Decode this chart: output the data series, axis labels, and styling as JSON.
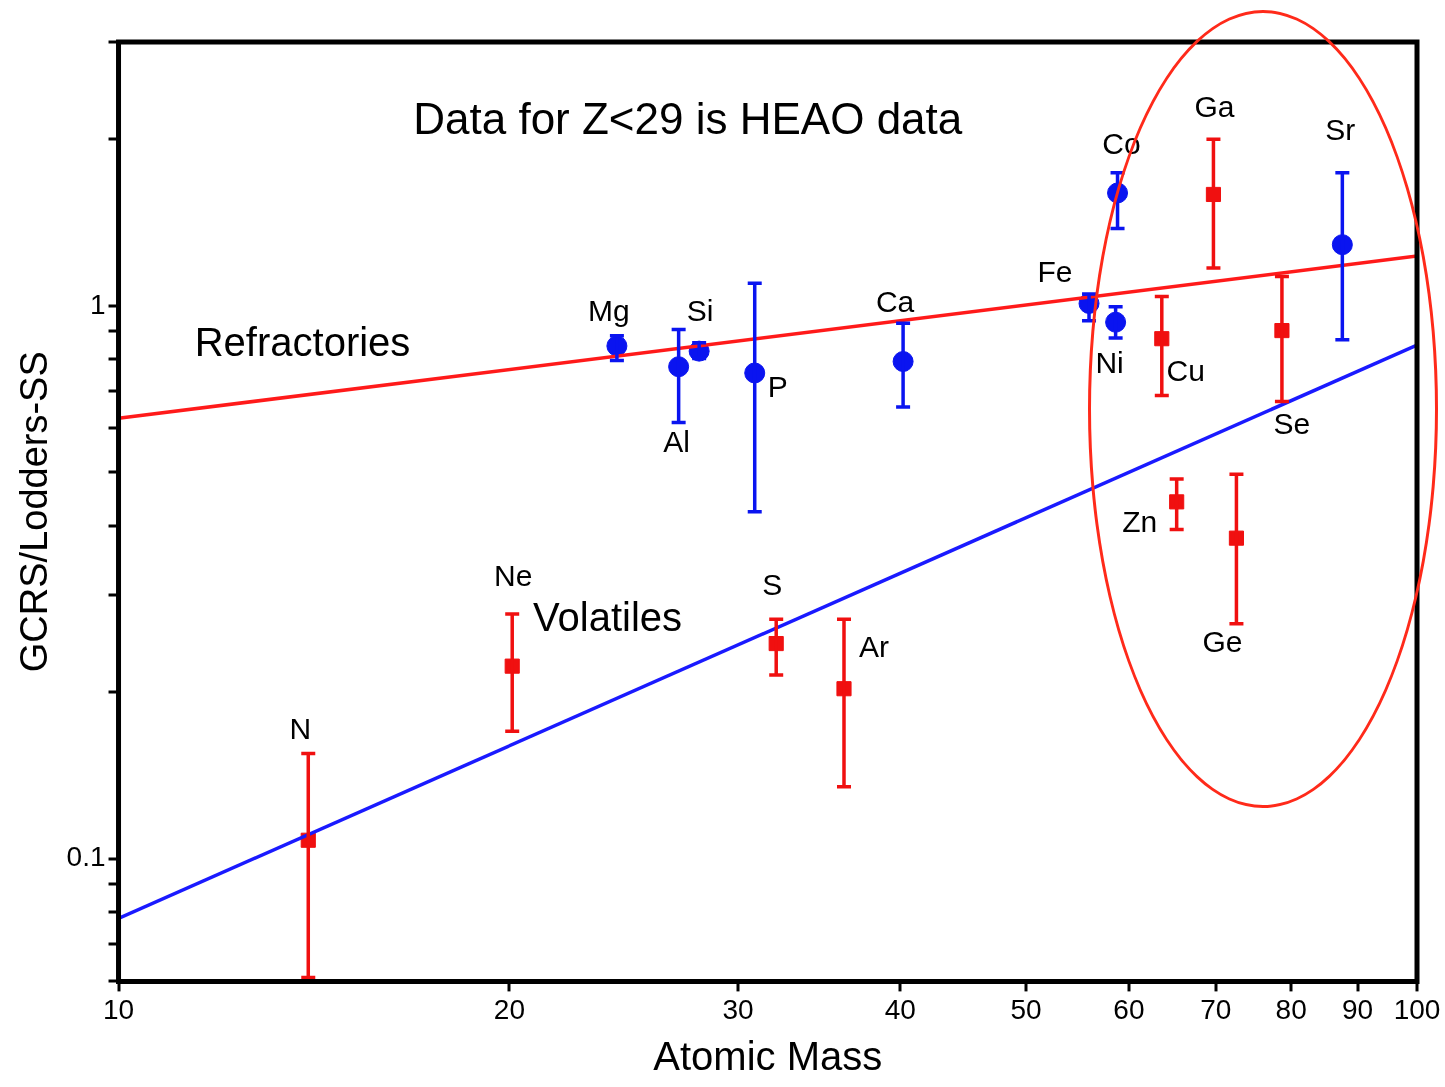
{
  "chart_data": {
    "type": "scatter",
    "xlabel": "Atomic Mass",
    "ylabel": "GCRS/Lodders-SS",
    "log": "xy",
    "xlim": [
      10,
      100
    ],
    "ylim": [
      0.06,
      3
    ],
    "xticks": [
      10,
      20,
      30,
      40,
      50,
      60,
      70,
      80,
      90,
      100
    ],
    "yticks": [
      {
        "value": 0.06,
        "label": null
      },
      {
        "value": 0.07,
        "label": null
      },
      {
        "value": 0.08,
        "label": null
      },
      {
        "value": 0.09,
        "label": null
      },
      0.1,
      {
        "value": 0.2,
        "label": null
      },
      {
        "value": 0.3,
        "label": null
      },
      {
        "value": 0.4,
        "label": null
      },
      {
        "value": 0.5,
        "label": null
      },
      {
        "value": 0.6,
        "label": null
      },
      {
        "value": 0.7,
        "label": null
      },
      {
        "value": 0.8,
        "label": null
      },
      {
        "value": 0.9,
        "label": null
      },
      1,
      {
        "value": 2,
        "label": null
      },
      {
        "value": 3,
        "label": null
      }
    ],
    "series": [
      {
        "type": "line",
        "name": "Refractories",
        "color": "#ff1a1a",
        "x": [
          10,
          100
        ],
        "values": [
          0.626,
          1.23
        ],
        "marker": "none"
      },
      {
        "type": "line",
        "name": "Volatiles",
        "color": "#1a1aff",
        "x": [
          10,
          100
        ],
        "values": [
          0.078,
          0.849
        ],
        "marker": "none"
      },
      {
        "type": "scatter",
        "color": "#0a14f0",
        "marker": "circle",
        "x": [
          24.2,
          27.0,
          28.0,
          30.9,
          40.2,
          55.9,
          58.6,
          58.8,
          87.6
        ],
        "values": [
          0.846,
          0.776,
          0.828,
          0.756,
          0.793,
          1.01,
          0.934,
          1.6,
          1.29
        ],
        "value_labels": [
          "Mg",
          "Al",
          "Si",
          "P",
          "Ca",
          "Fe",
          "Ni",
          "Co",
          "Sr"
        ],
        "errors": [
          [
            0.796,
            0.883
          ],
          [
            0.615,
            0.906
          ],
          [
            0.803,
            0.857
          ],
          [
            0.424,
            1.099
          ],
          [
            0.656,
            0.93
          ],
          [
            0.94,
            1.05
          ],
          [
            0.875,
            0.996
          ],
          [
            1.38,
            1.74
          ],
          [
            0.868,
            1.74
          ]
        ]
      },
      {
        "type": "scatter",
        "color": "#f01010",
        "marker": "square",
        "x": [
          14.0,
          20.1,
          32.1,
          36.2,
          63.6,
          65.3,
          69.7,
          72.6,
          78.7
        ],
        "values": [
          0.108,
          0.223,
          0.245,
          0.203,
          0.872,
          0.442,
          1.59,
          0.38,
          0.902
        ],
        "value_labels": [
          "N",
          "Ne",
          "S",
          "Ar",
          "Cu",
          "Zn",
          "Ga",
          "Ge",
          "Se"
        ],
        "errors": [
          [
            0.061,
            0.155
          ],
          [
            0.17,
            0.277
          ],
          [
            0.215,
            0.271
          ],
          [
            0.135,
            0.271
          ],
          [
            0.688,
            1.04
          ],
          [
            0.394,
            0.486
          ],
          [
            1.17,
            2.0
          ],
          [
            0.266,
            0.496
          ],
          [
            0.671,
            1.13
          ]
        ]
      }
    ],
    "annotations": [
      "Data for Z<29 is HEAO data"
    ]
  }
}
